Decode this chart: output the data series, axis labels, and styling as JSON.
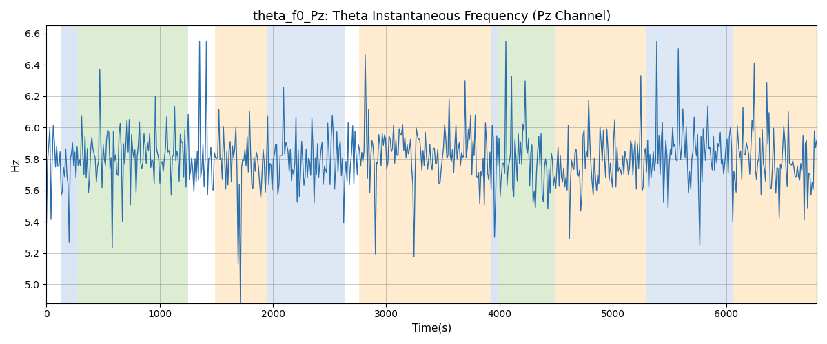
{
  "title": "theta_f0_Pz: Theta Instantaneous Frequency (Pz Channel)",
  "xlabel": "Time(s)",
  "ylabel": "Hz",
  "ylim": [
    4.88,
    6.65
  ],
  "xlim": [
    0,
    6800
  ],
  "yticks": [
    5.0,
    5.2,
    5.4,
    5.6,
    5.8,
    6.0,
    6.2,
    6.4,
    6.6
  ],
  "xticks": [
    0,
    1000,
    2000,
    3000,
    4000,
    5000,
    6000
  ],
  "line_color": "#2c6fad",
  "line_width": 1.0,
  "bg_regions": [
    {
      "xmin": 130,
      "xmax": 280,
      "color": "#aec6e8",
      "alpha": 0.45
    },
    {
      "xmin": 280,
      "xmax": 1250,
      "color": "#b2d9a0",
      "alpha": 0.45
    },
    {
      "xmin": 1490,
      "xmax": 1950,
      "color": "#ffd9a0",
      "alpha": 0.5
    },
    {
      "xmin": 1950,
      "xmax": 2640,
      "color": "#aec6e8",
      "alpha": 0.4
    },
    {
      "xmin": 2760,
      "xmax": 3930,
      "color": "#ffd9a0",
      "alpha": 0.5
    },
    {
      "xmin": 3930,
      "xmax": 3990,
      "color": "#aec6e8",
      "alpha": 0.45
    },
    {
      "xmin": 3990,
      "xmax": 4490,
      "color": "#b2d9a0",
      "alpha": 0.45
    },
    {
      "xmin": 4490,
      "xmax": 4710,
      "color": "#ffd9a0",
      "alpha": 0.5
    },
    {
      "xmin": 4710,
      "xmax": 5290,
      "color": "#ffd9a0",
      "alpha": 0.5
    },
    {
      "xmin": 5290,
      "xmax": 6060,
      "color": "#aec6e8",
      "alpha": 0.4
    },
    {
      "xmin": 6060,
      "xmax": 6800,
      "color": "#ffd9a0",
      "alpha": 0.5
    }
  ],
  "seed": 42,
  "n_points": 680,
  "base_freq": 5.8,
  "noise_std": 0.13,
  "spike_prob": 0.04,
  "spike_magnitude": 0.5,
  "title_fontsize": 13
}
